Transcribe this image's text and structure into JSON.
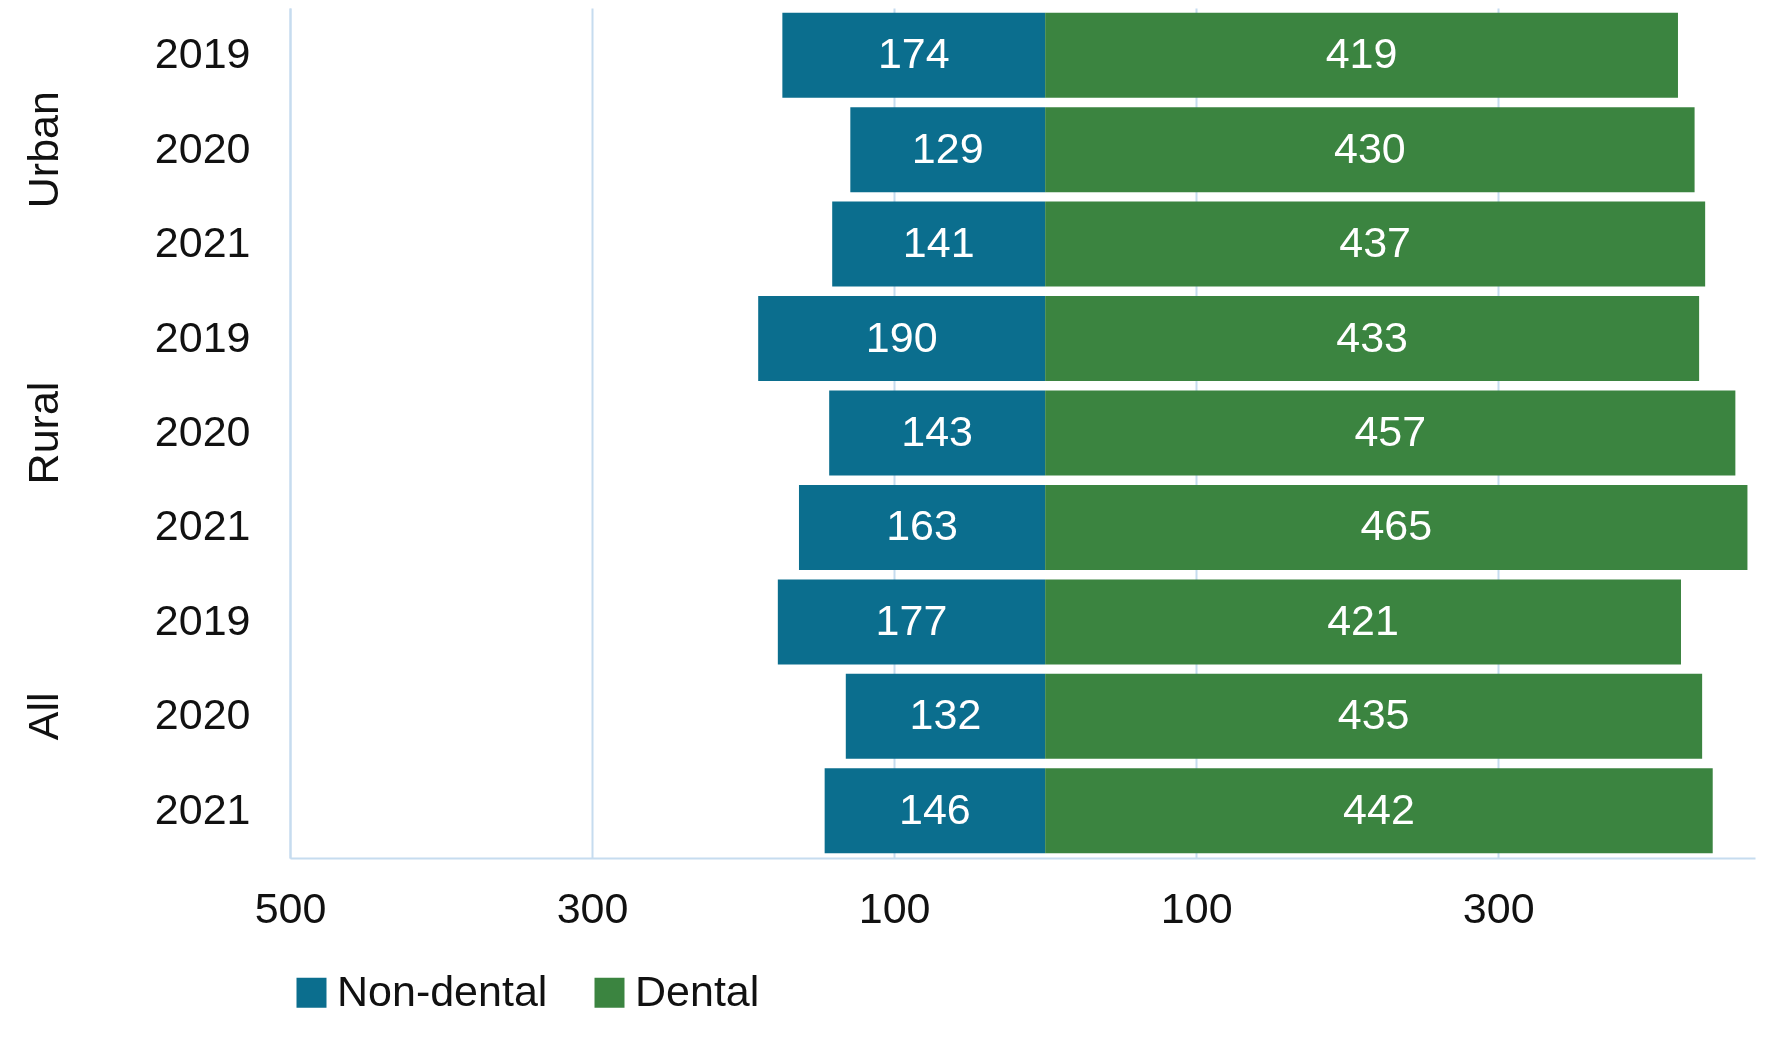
{
  "chart_data": {
    "type": "bar",
    "orientation": "horizontal",
    "categories": [
      "2019",
      "2020",
      "2021",
      "2019",
      "2020",
      "2021",
      "2019",
      "2020",
      "2021"
    ],
    "series": [
      {
        "name": "Non-dental",
        "color": "#0b6e8e",
        "values": [
          174,
          129,
          141,
          190,
          143,
          163,
          177,
          132,
          146
        ],
        "base": [
          -174,
          -129,
          -141,
          -190,
          -143,
          -163,
          -177,
          -132,
          -146
        ]
      },
      {
        "name": "Dental",
        "color": "#3b8440",
        "values": [
          419,
          430,
          437,
          433,
          457,
          465,
          421,
          435,
          442
        ],
        "base": [
          0,
          0,
          0,
          0,
          0,
          0,
          0,
          0,
          0
        ]
      }
    ],
    "annotations": [
      "Urban",
      "Rural",
      "All"
    ],
    "xlim": [
      -500,
      470
    ],
    "xticks": [
      {
        "value": -500,
        "label": "500"
      },
      {
        "value": -300,
        "label": "300"
      },
      {
        "value": -100,
        "label": "100"
      },
      100,
      300
    ],
    "data_labels": true,
    "grid": "x",
    "legend": "bottom"
  }
}
